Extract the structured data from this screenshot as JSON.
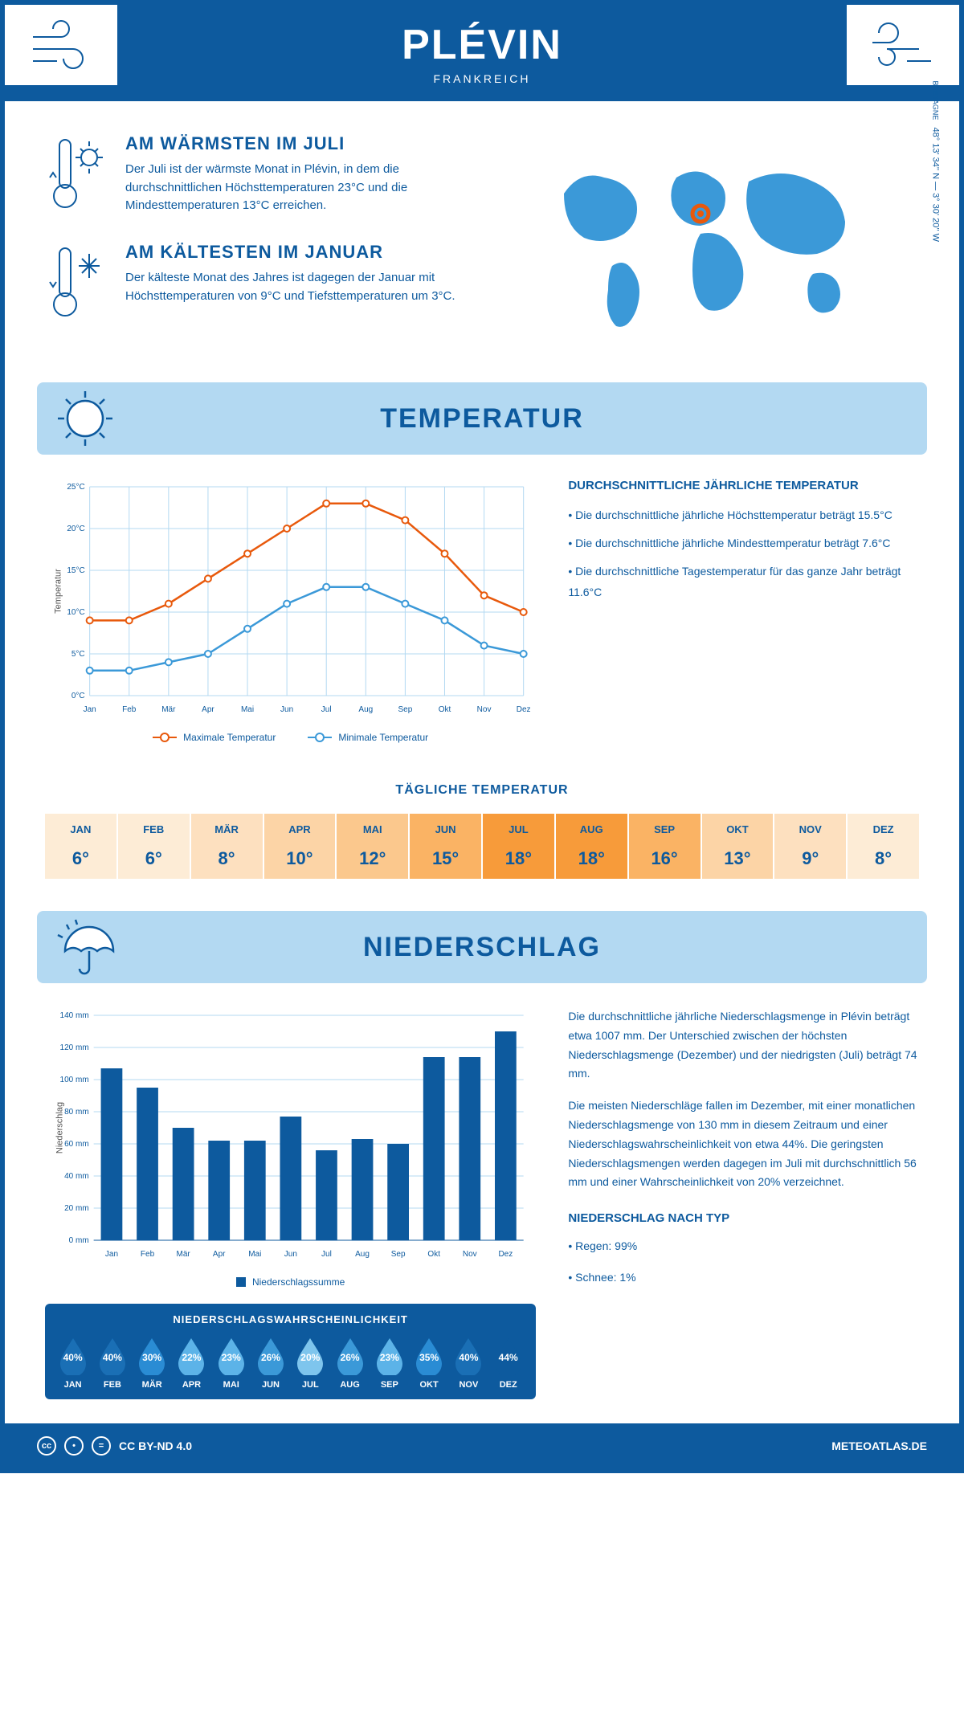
{
  "header": {
    "title": "PLÉVIN",
    "subtitle": "FRANKREICH"
  },
  "coords": "48° 13' 34'' N — 3° 30' 20'' W",
  "region": "BRETAGNE",
  "warmest": {
    "title": "AM WÄRMSTEN IM JULI",
    "text": "Der Juli ist der wärmste Monat in Plévin, in dem die durchschnittlichen Höchsttemperaturen 23°C und die Mindesttemperaturen 13°C erreichen."
  },
  "coldest": {
    "title": "AM KÄLTESTEN IM JANUAR",
    "text": "Der kälteste Monat des Jahres ist dagegen der Januar mit Höchsttemperaturen von 9°C und Tiefsttemperaturen um 3°C."
  },
  "temp_section_title": "TEMPERATUR",
  "temp_chart": {
    "months": [
      "Jan",
      "Feb",
      "Mär",
      "Apr",
      "Mai",
      "Jun",
      "Jul",
      "Aug",
      "Sep",
      "Okt",
      "Nov",
      "Dez"
    ],
    "max": [
      9,
      9,
      11,
      14,
      17,
      20,
      23,
      23,
      21,
      17,
      12,
      10
    ],
    "min": [
      3,
      3,
      4,
      5,
      8,
      11,
      13,
      13,
      11,
      9,
      6,
      5
    ],
    "max_color": "#e8590c",
    "min_color": "#3b99d8",
    "ylim": [
      0,
      25
    ],
    "ytick": 5,
    "ylabel": "Temperatur",
    "legend_max": "Maximale Temperatur",
    "legend_min": "Minimale Temperatur",
    "grid_color": "#b3d9f2"
  },
  "temp_text": {
    "heading": "DURCHSCHNITTLICHE JÄHRLICHE TEMPERATUR",
    "l1": "• Die durchschnittliche jährliche Höchsttemperatur beträgt 15.5°C",
    "l2": "• Die durchschnittliche jährliche Mindesttemperatur beträgt 7.6°C",
    "l3": "• Die durchschnittliche Tagestemperatur für das ganze Jahr beträgt 11.6°C"
  },
  "daily": {
    "title": "TÄGLICHE TEMPERATUR",
    "months": [
      "JAN",
      "FEB",
      "MÄR",
      "APR",
      "MAI",
      "JUN",
      "JUL",
      "AUG",
      "SEP",
      "OKT",
      "NOV",
      "DEZ"
    ],
    "values": [
      "6°",
      "6°",
      "8°",
      "10°",
      "12°",
      "15°",
      "18°",
      "18°",
      "16°",
      "13°",
      "9°",
      "8°"
    ],
    "colors": [
      "#fdecd6",
      "#fdecd6",
      "#fde0bf",
      "#fcd4a6",
      "#fbc88d",
      "#fab364",
      "#f79b3a",
      "#f79b3a",
      "#fab364",
      "#fcd4a6",
      "#fde0bf",
      "#fdecd6"
    ]
  },
  "precip_section_title": "NIEDERSCHLAG",
  "precip_chart": {
    "months": [
      "Jan",
      "Feb",
      "Mär",
      "Apr",
      "Mai",
      "Jun",
      "Jul",
      "Aug",
      "Sep",
      "Okt",
      "Nov",
      "Dez"
    ],
    "values": [
      107,
      95,
      70,
      62,
      62,
      77,
      56,
      63,
      60,
      114,
      114,
      130
    ],
    "bar_color": "#0d5a9e",
    "ylim": [
      0,
      140
    ],
    "ytick": 20,
    "ylabel": "Niederschlag",
    "legend": "Niederschlagssumme",
    "grid_color": "#b3d9f2"
  },
  "precip_text": {
    "p1": "Die durchschnittliche jährliche Niederschlagsmenge in Plévin beträgt etwa 1007 mm. Der Unterschied zwischen der höchsten Niederschlagsmenge (Dezember) und der niedrigsten (Juli) beträgt 74 mm.",
    "p2": "Die meisten Niederschläge fallen im Dezember, mit einer monatlichen Niederschlagsmenge von 130 mm in diesem Zeitraum und einer Niederschlagswahrscheinlichkeit von etwa 44%. Die geringsten Niederschlagsmengen werden dagegen im Juli mit durchschnittlich 56 mm und einer Wahrscheinlichkeit von 20% verzeichnet.",
    "h": "NIEDERSCHLAG NACH TYP",
    "l1": "• Regen: 99%",
    "l2": "• Schnee: 1%"
  },
  "prob": {
    "title": "NIEDERSCHLAGSWAHRSCHEINLICHKEIT",
    "months": [
      "JAN",
      "FEB",
      "MÄR",
      "APR",
      "MAI",
      "JUN",
      "JUL",
      "AUG",
      "SEP",
      "OKT",
      "NOV",
      "DEZ"
    ],
    "pct": [
      "40%",
      "40%",
      "30%",
      "22%",
      "23%",
      "26%",
      "20%",
      "26%",
      "23%",
      "35%",
      "40%",
      "44%"
    ],
    "colors": [
      "#1a6fb5",
      "#1a6fb5",
      "#2a8cd4",
      "#5cb3e8",
      "#5cb3e8",
      "#3b99d8",
      "#7ec5ed",
      "#3b99d8",
      "#5cb3e8",
      "#2a8cd4",
      "#1a6fb5",
      "#0d5a9e"
    ]
  },
  "footer": {
    "license": "CC BY-ND 4.0",
    "site": "METEOATLAS.DE"
  }
}
